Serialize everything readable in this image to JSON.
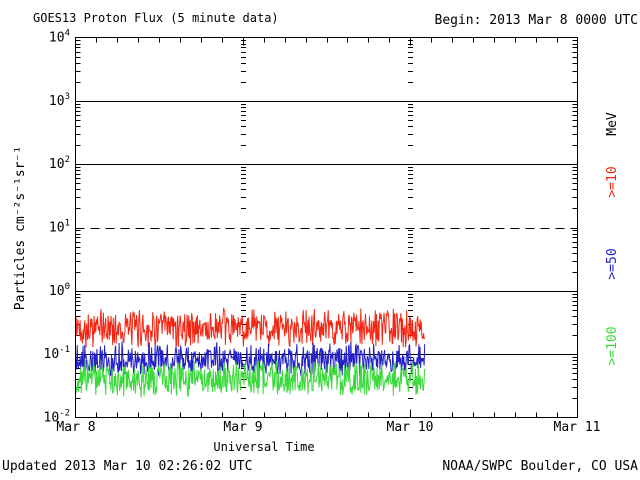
{
  "chart_data": {
    "type": "line",
    "title": "GOES13 Proton Flux (5 minute data)",
    "begin_label": "Begin: 2013 Mar 8 0000 UTC",
    "xlabel": "Universal Time",
    "ylabel": "Particles cm⁻²s⁻¹sr⁻¹",
    "unit_label": "MeV",
    "x_ticks": [
      "Mar 8",
      "Mar 9",
      "Mar 10",
      "Mar 11"
    ],
    "x_range": {
      "start": "2013 Mar 8 0000 UTC",
      "end": "2013 Mar 11 0000 UTC",
      "days": 3,
      "minor_tick_hours": 3
    },
    "y_scale": "log",
    "ylim": [
      0.01,
      10000
    ],
    "y_tick_exponents": [
      4,
      3,
      2,
      1,
      0,
      -1,
      -2
    ],
    "grid": {
      "horizontal_solid_exponents": [
        3,
        2,
        0,
        -1
      ],
      "horizontal_dashed_exponents": [
        1
      ],
      "vertical_dotted_days": [
        1,
        2
      ]
    },
    "samples_per_day": 288,
    "data_end_day_fraction": 2.09,
    "series": [
      {
        "name": "GOES13 proton flux >=10 MeV",
        "label": ">=10",
        "color": "#f22613",
        "mean_flux": 0.25,
        "min_flux": 0.12,
        "max_flux": 0.55
      },
      {
        "name": "GOES13 proton flux >=50 MeV",
        "label": ">=50",
        "color": "#2420c8",
        "mean_flux": 0.082,
        "min_flux": 0.042,
        "max_flux": 0.16
      },
      {
        "name": "GOES13 proton flux >=100 MeV",
        "label": ">=100",
        "color": "#3cd93c",
        "mean_flux": 0.042,
        "min_flux": 0.02,
        "max_flux": 0.085
      }
    ]
  },
  "footer": {
    "updated": "Updated 2013 Mar 10 02:26:02 UTC",
    "credit": "NOAA/SWPC Boulder, CO USA"
  }
}
